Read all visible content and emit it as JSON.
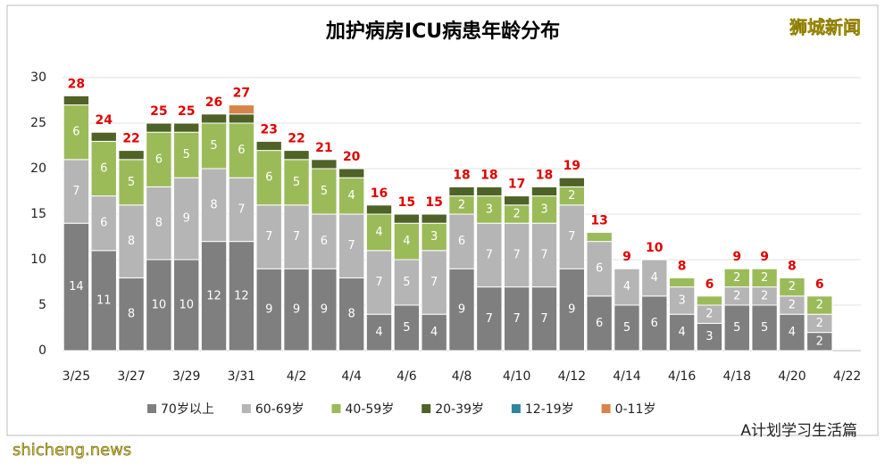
{
  "chart_data": {
    "type": "stacked_bar",
    "title": "加护病房ICU病患年龄分布",
    "brand": "狮城新闻",
    "footer_left": "shicheng.news",
    "footer_right": "A计划学习生活篇",
    "categories": [
      "3/25",
      null,
      "3/27",
      null,
      "3/29",
      null,
      "3/31",
      null,
      "4/2",
      null,
      "4/4",
      null,
      "4/6",
      null,
      "4/8",
      null,
      "4/10",
      null,
      "4/12",
      null,
      "4/14",
      null,
      "4/16",
      null,
      "4/18",
      null,
      "4/20",
      null,
      "4/22"
    ],
    "series": [
      {
        "name": "70岁以上",
        "color": "#7f7f7f",
        "values": [
          14,
          11,
          8,
          10,
          10,
          12,
          12,
          9,
          9,
          9,
          8,
          4,
          5,
          4,
          9,
          7,
          7,
          7,
          9,
          6,
          5,
          6,
          4,
          3,
          5,
          5,
          4,
          2,
          null
        ]
      },
      {
        "name": "60-69岁",
        "color": "#b5b5b5",
        "values": [
          7,
          6,
          8,
          8,
          9,
          8,
          7,
          7,
          7,
          6,
          7,
          7,
          5,
          7,
          6,
          7,
          7,
          7,
          7,
          6,
          4,
          4,
          3,
          2,
          2,
          2,
          2,
          2,
          null
        ]
      },
      {
        "name": "40-59岁",
        "color": "#9bbb59",
        "values": [
          6,
          6,
          5,
          6,
          5,
          5,
          6,
          6,
          5,
          5,
          4,
          4,
          4,
          3,
          2,
          3,
          2,
          3,
          2,
          1,
          0,
          0,
          1,
          1,
          2,
          2,
          2,
          2,
          null
        ]
      },
      {
        "name": "20-39岁",
        "color": "#4f6228",
        "values": [
          1,
          1,
          1,
          1,
          1,
          1,
          1,
          1,
          1,
          1,
          1,
          1,
          1,
          1,
          1,
          1,
          1,
          1,
          1,
          0,
          0,
          0,
          0,
          0,
          0,
          0,
          0,
          0,
          null
        ]
      },
      {
        "name": "12-19岁",
        "color": "#31859c",
        "values": [
          0,
          0,
          0,
          0,
          0,
          0,
          0,
          0,
          0,
          0,
          0,
          0,
          0,
          0,
          0,
          0,
          0,
          0,
          0,
          0,
          0,
          0,
          0,
          0,
          0,
          0,
          0,
          0,
          null
        ]
      },
      {
        "name": "0-11岁",
        "color": "#d9844a",
        "values": [
          0,
          0,
          0,
          0,
          0,
          0,
          1,
          0,
          0,
          0,
          0,
          0,
          0,
          0,
          0,
          0,
          0,
          0,
          0,
          0,
          0,
          0,
          0,
          0,
          0,
          0,
          0,
          0,
          null
        ]
      }
    ],
    "totals": [
      28,
      24,
      22,
      25,
      25,
      26,
      27,
      23,
      22,
      21,
      20,
      16,
      15,
      15,
      18,
      18,
      17,
      18,
      19,
      13,
      9,
      10,
      8,
      6,
      9,
      9,
      8,
      6,
      null
    ],
    "total_color": "#e00000",
    "ylim": [
      0,
      30
    ],
    "yticks": [
      0,
      5,
      10,
      15,
      20,
      25,
      30
    ],
    "grid": true
  }
}
